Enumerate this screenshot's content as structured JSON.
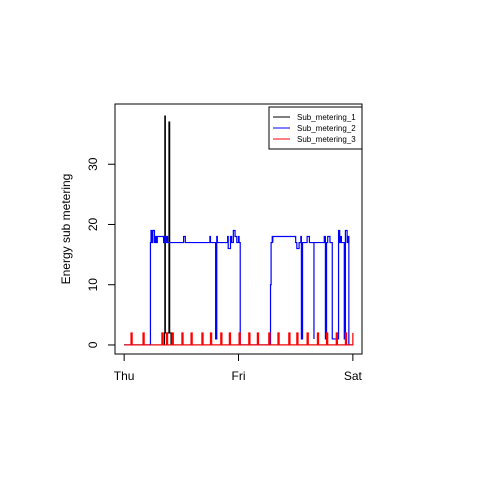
{
  "chart_data": {
    "type": "line",
    "title": "",
    "xlabel": "",
    "ylabel": "Energy sub metering",
    "x_ticks": [
      "Thu",
      "Fri",
      "Sat"
    ],
    "x_tick_values": [
      0,
      1,
      2
    ],
    "y_ticks": [
      0,
      10,
      20,
      30
    ],
    "xlim": [
      -0.08,
      2.08
    ],
    "ylim": [
      -1.5,
      40
    ],
    "legend": {
      "position": "top-right",
      "boxed": true
    },
    "grid": false,
    "series": [
      {
        "name": "Sub_metering_1",
        "color": "#000000",
        "x": [
          0,
          0.352,
          0.352,
          0.356,
          0.356,
          0.36,
          0.36,
          0.37,
          0.37,
          0.375,
          0.375,
          0.392,
          0.392,
          0.398,
          0.398,
          0.41,
          0.41,
          2.0
        ],
        "y": [
          0,
          0,
          2,
          2,
          38,
          38,
          2,
          2,
          1,
          1,
          2,
          2,
          37,
          37,
          2,
          2,
          0,
          0
        ]
      },
      {
        "name": "Sub_metering_2",
        "color": "#0000ff",
        "x": [
          0,
          0.23,
          0.23,
          0.235,
          0.235,
          0.245,
          0.245,
          0.25,
          0.25,
          0.265,
          0.265,
          0.275,
          0.275,
          0.285,
          0.285,
          0.29,
          0.29,
          0.345,
          0.345,
          0.355,
          0.355,
          0.365,
          0.365,
          0.37,
          0.37,
          0.38,
          0.38,
          0.52,
          0.52,
          0.535,
          0.535,
          0.75,
          0.75,
          0.755,
          0.755,
          0.8,
          0.8,
          0.81,
          0.81,
          0.815,
          0.815,
          0.905,
          0.905,
          0.91,
          0.91,
          0.93,
          0.93,
          0.94,
          0.94,
          0.955,
          0.955,
          0.97,
          0.97,
          0.985,
          0.985,
          1.0,
          1.0,
          1.005,
          1.005,
          1.015,
          1.015,
          1.28,
          1.28,
          1.285,
          1.285,
          1.295,
          1.295,
          1.3,
          1.3,
          1.3,
          1.3,
          1.5,
          1.5,
          1.51,
          1.51,
          1.53,
          1.53,
          1.545,
          1.545,
          1.55,
          1.55,
          1.56,
          1.56,
          1.6,
          1.6,
          1.62,
          1.62,
          1.66,
          1.66,
          1.66,
          1.66,
          1.75,
          1.75,
          1.76,
          1.76,
          1.77,
          1.77,
          1.78,
          1.78,
          1.8,
          1.8,
          1.82,
          1.82,
          1.875,
          1.875,
          1.885,
          1.885,
          1.895,
          1.895,
          1.9,
          1.9,
          1.925,
          1.925,
          1.935,
          1.935,
          1.95,
          1.95,
          1.955,
          1.955,
          1.965,
          1.965,
          2.0
        ],
        "y": [
          0,
          0,
          17,
          17,
          19,
          19,
          17,
          17,
          19,
          19,
          17,
          17,
          18,
          18,
          17,
          17,
          18,
          18,
          17,
          17,
          18,
          18,
          17,
          17,
          18,
          18,
          17,
          17,
          18,
          18,
          17,
          17,
          18,
          18,
          17,
          17,
          1,
          1,
          18,
          18,
          17,
          17,
          18,
          18,
          16,
          16,
          18,
          18,
          17,
          17,
          19,
          19,
          18,
          18,
          17,
          17,
          18,
          18,
          17,
          17,
          0,
          0,
          10,
          10,
          17,
          17,
          18,
          18,
          17,
          17,
          18,
          18,
          17,
          17,
          16,
          16,
          17,
          17,
          18,
          18,
          1,
          1,
          17,
          17,
          18,
          18,
          17,
          17,
          1,
          1,
          17,
          17,
          18,
          18,
          1,
          1,
          17,
          17,
          18,
          18,
          17,
          17,
          1,
          1,
          19,
          19,
          17,
          17,
          18,
          18,
          17,
          17,
          1,
          1,
          19,
          19,
          17,
          17,
          18,
          18,
          0,
          0
        ]
      },
      {
        "name": "Sub_metering_3",
        "color": "#ff0000",
        "x": [
          0,
          0.06,
          0.06,
          0.07,
          0.07,
          0.165,
          0.165,
          0.175,
          0.175,
          0.33,
          0.33,
          0.34,
          0.34,
          0.37,
          0.37,
          0.38,
          0.38,
          0.42,
          0.42,
          0.43,
          0.43,
          0.505,
          0.505,
          0.515,
          0.515,
          0.585,
          0.585,
          0.595,
          0.595,
          0.68,
          0.68,
          0.69,
          0.69,
          0.755,
          0.755,
          0.765,
          0.765,
          0.845,
          0.845,
          0.855,
          0.855,
          0.92,
          0.92,
          0.93,
          0.93,
          1.005,
          1.005,
          1.015,
          1.015,
          1.09,
          1.09,
          1.1,
          1.1,
          1.165,
          1.165,
          1.175,
          1.175,
          1.265,
          1.265,
          1.275,
          1.275,
          1.345,
          1.345,
          1.355,
          1.355,
          1.44,
          1.44,
          1.45,
          1.45,
          1.51,
          1.51,
          1.52,
          1.52,
          1.6,
          1.6,
          1.61,
          1.61,
          1.69,
          1.69,
          1.7,
          1.7,
          1.77,
          1.77,
          1.78,
          1.78,
          1.855,
          1.855,
          1.865,
          1.865,
          1.935,
          1.935,
          1.945,
          1.945,
          2.0,
          2.0,
          2.0
        ],
        "y": [
          0,
          0,
          2,
          2,
          0,
          0,
          2,
          2,
          0,
          0,
          2,
          2,
          0,
          0,
          2,
          2,
          0,
          0,
          2,
          2,
          0,
          0,
          2,
          2,
          0,
          0,
          2,
          2,
          0,
          0,
          2,
          2,
          0,
          0,
          2,
          2,
          0,
          0,
          2,
          2,
          0,
          0,
          2,
          2,
          0,
          0,
          2,
          2,
          0,
          0,
          2,
          2,
          0,
          0,
          2,
          2,
          0,
          0,
          2,
          2,
          0,
          0,
          2,
          2,
          0,
          0,
          2,
          2,
          0,
          0,
          2,
          2,
          0,
          0,
          2,
          2,
          0,
          0,
          2,
          2,
          0,
          0,
          2,
          2,
          0,
          0,
          2,
          2,
          0,
          0,
          2,
          2,
          0,
          0,
          2,
          0
        ]
      }
    ]
  }
}
